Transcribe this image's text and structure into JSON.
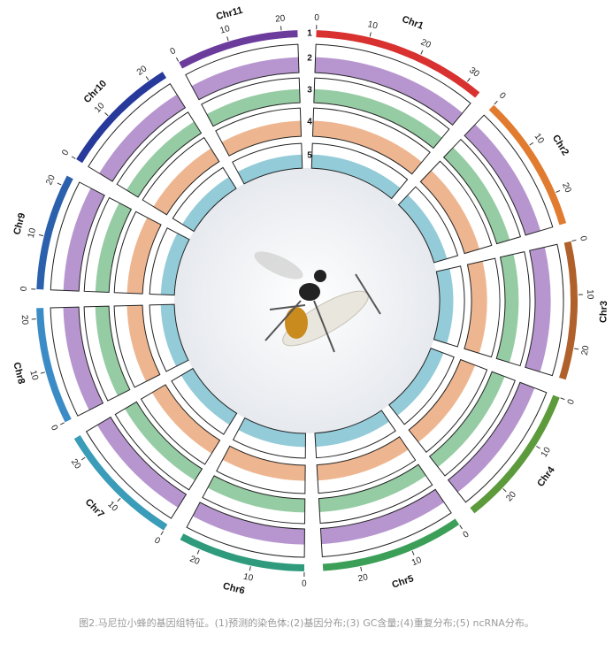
{
  "figure": {
    "chromosomes": [
      {
        "name": "Chr1",
        "length": 33,
        "color": "#d8312f",
        "ticks": [
          0,
          10,
          20,
          30
        ]
      },
      {
        "name": "Chr2",
        "length": 26,
        "color": "#e07b30",
        "ticks": [
          0,
          10,
          20
        ]
      },
      {
        "name": "Chr3",
        "length": 26,
        "color": "#b0602a",
        "ticks": [
          0,
          10,
          20
        ]
      },
      {
        "name": "Chr4",
        "length": 27,
        "color": "#5c9a3c",
        "ticks": [
          0,
          10,
          20
        ]
      },
      {
        "name": "Chr5",
        "length": 27,
        "color": "#3c9f58",
        "ticks": [
          0,
          10,
          20
        ]
      },
      {
        "name": "Chr6",
        "length": 24,
        "color": "#2f9a7c",
        "ticks": [
          0,
          10,
          20
        ]
      },
      {
        "name": "Chr7",
        "length": 24,
        "color": "#3a9cb8",
        "ticks": [
          0,
          10,
          20
        ]
      },
      {
        "name": "Chr8",
        "length": 22,
        "color": "#3b8cc6",
        "ticks": [
          0,
          10,
          20
        ]
      },
      {
        "name": "Chr9",
        "length": 22,
        "color": "#2a60ac",
        "ticks": [
          0,
          10,
          20
        ]
      },
      {
        "name": "Chr10",
        "length": 23,
        "color": "#27399a",
        "ticks": [
          0,
          10,
          20
        ]
      },
      {
        "name": "Chr11",
        "length": 23,
        "color": "#6b3c9c",
        "ticks": [
          0,
          10,
          20
        ]
      }
    ],
    "tracks": [
      {
        "label": "1"
      },
      {
        "label": "2",
        "color": "#7b3fa8"
      },
      {
        "label": "3",
        "color": "#3fa35a"
      },
      {
        "label": "4",
        "color": "#e07a34"
      },
      {
        "label": "5",
        "color": "#3aa0b8"
      }
    ],
    "caption": "图2.马尼拉小蜂的基因组特征。(1)预测的染色体;(2)基因分布;(3) GC含量;(4)重复分布;(5) ncRNA分布。"
  }
}
